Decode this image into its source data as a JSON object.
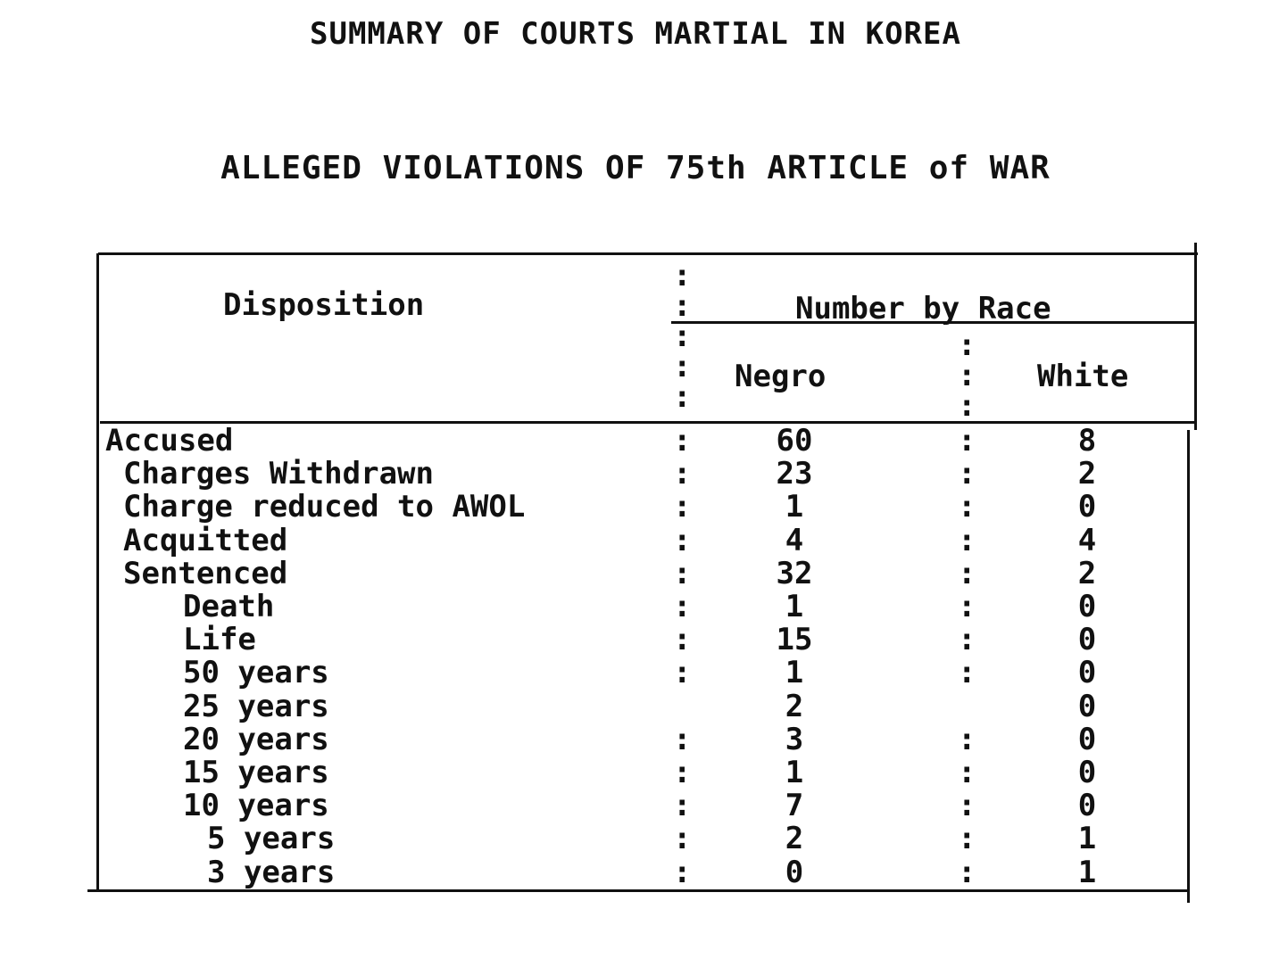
{
  "document": {
    "title": "SUMMARY OF COURTS MARTIAL IN KOREA",
    "subtitle": "ALLEGED VIOLATIONS OF 75th ARTICLE of WAR"
  },
  "table": {
    "headers": {
      "disposition": "Disposition",
      "group": "Number by Race",
      "negro": "Negro",
      "white": "White"
    },
    "rows": [
      {
        "label": "Accused",
        "indent": 0,
        "negro": "60",
        "white": "8",
        "sep": ":"
      },
      {
        "label": "Charges Withdrawn",
        "indent": 1,
        "negro": "23",
        "white": "2",
        "sep": ":"
      },
      {
        "label": "Charge reduced to AWOL",
        "indent": 1,
        "negro": "1",
        "white": "0",
        "sep": ":"
      },
      {
        "label": "Acquitted",
        "indent": 1,
        "negro": "4",
        "white": "4",
        "sep": ":"
      },
      {
        "label": "Sentenced",
        "indent": 1,
        "negro": "32",
        "white": "2",
        "sep": ":"
      },
      {
        "label": "Death",
        "indent": 2,
        "negro": "1",
        "white": "0",
        "sep": ":"
      },
      {
        "label": "Life",
        "indent": 2,
        "negro": "15",
        "white": "0",
        "sep": ":"
      },
      {
        "label": "50 years",
        "indent": 2,
        "negro": "1",
        "white": "0",
        "sep": ":"
      },
      {
        "label": "25 years",
        "indent": 2,
        "negro": "2",
        "white": "0",
        "sep": ""
      },
      {
        "label": "20 years",
        "indent": 2,
        "negro": "3",
        "white": "0",
        "sep": ":"
      },
      {
        "label": "15 years",
        "indent": 2,
        "negro": "1",
        "white": "0",
        "sep": ":"
      },
      {
        "label": "10 years",
        "indent": 2,
        "negro": "7",
        "white": "0",
        "sep": ":"
      },
      {
        "label": "5 years",
        "indent": 3,
        "negro": "2",
        "white": "1",
        "sep": ":"
      },
      {
        "label": "3 years",
        "indent": 3,
        "negro": "0",
        "white": "1",
        "sep": ":"
      }
    ]
  }
}
